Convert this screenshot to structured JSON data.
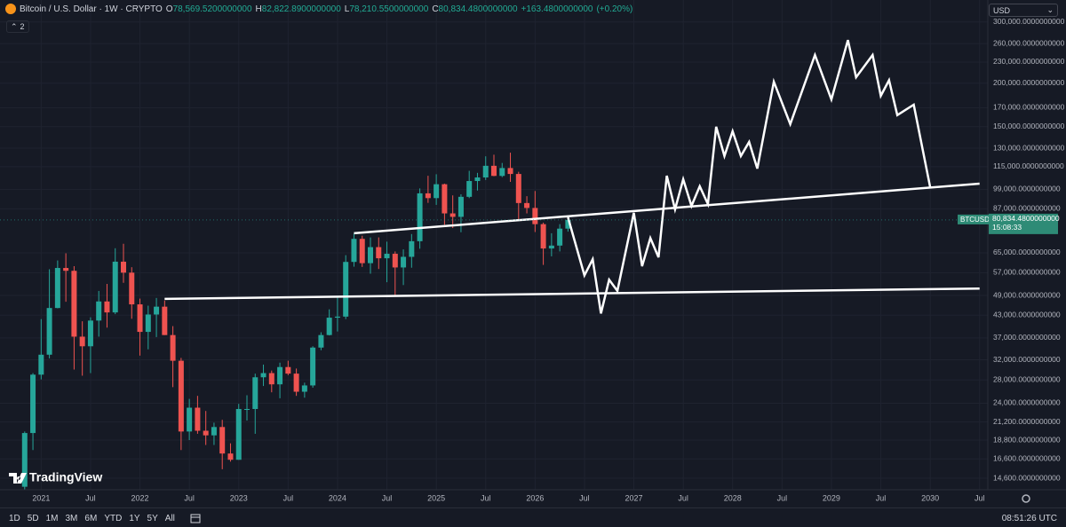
{
  "header": {
    "title": "Bitcoin / U.S. Dollar · 1W · CRYPTO",
    "open_label": "O",
    "open": "78,569.5200000000",
    "high_label": "H",
    "high": "82,822.8900000000",
    "low_label": "L",
    "low": "78,210.5500000000",
    "close_label": "C",
    "close": "80,834.4800000000",
    "change": "+163.4800000000",
    "change_pct": "(+0.20%)",
    "indicator_count": "2",
    "currency": "USD"
  },
  "watermark": "TradingView",
  "toolbar": {
    "ranges": [
      "1D",
      "5D",
      "1M",
      "3M",
      "6M",
      "YTD",
      "1Y",
      "5Y",
      "All"
    ],
    "clock": "08:51:26 UTC"
  },
  "chart_data": {
    "type": "candlestick",
    "log_scale": true,
    "grid": true,
    "up_color": "#26a69a",
    "down_color": "#ef5350",
    "categories": [
      "2020-11",
      "2020-12",
      "2021-01",
      "2021-02",
      "2021-03",
      "2021-04",
      "2021-05",
      "2021-06",
      "2021-07",
      "2021-08",
      "2021-09",
      "2021-10",
      "2021-11",
      "2021-12",
      "2022-01",
      "2022-02",
      "2022-03",
      "2022-04",
      "2022-05",
      "2022-06",
      "2022-07",
      "2022-08",
      "2022-09",
      "2022-10",
      "2022-11",
      "2022-12",
      "2023-01",
      "2023-02",
      "2023-03",
      "2023-04",
      "2023-05",
      "2023-06",
      "2023-07",
      "2023-08",
      "2023-09",
      "2023-10",
      "2023-11",
      "2023-12",
      "2024-01",
      "2024-02",
      "2024-03",
      "2024-04",
      "2024-05",
      "2024-06",
      "2024-07",
      "2024-08",
      "2024-09",
      "2024-10",
      "2024-11",
      "2024-12",
      "2025-01",
      "2025-02",
      "2025-03",
      "2025-04",
      "2025-05",
      "2025-06",
      "2025-07",
      "2025-08",
      "2025-09",
      "2025-10",
      "2025-11",
      "2025-12",
      "2026-01",
      "2026-02",
      "2026-03",
      "2026-04",
      "2026-05"
    ],
    "open": [
      13800,
      19700,
      29000,
      33100,
      45100,
      58800,
      57700,
      37300,
      35000,
      41500,
      47100,
      43800,
      61300,
      57000,
      46200,
      38500,
      43200,
      45500,
      37700,
      31800,
      19900,
      23300,
      20000,
      19400,
      20500,
      17200,
      16500,
      23100,
      23100,
      28500,
      29300,
      27200,
      30500,
      29200,
      25900,
      27000,
      34700,
      37700,
      42300,
      42600,
      61200,
      71300,
      60700,
      67500,
      62700,
      64600,
      59000,
      63300,
      70200,
      96400,
      93400,
      102400,
      84400,
      82500,
      94200,
      104600,
      107100,
      115700,
      108200,
      114000,
      109600,
      90400,
      87500,
      78600,
      66900,
      68200,
      76300
    ],
    "high": [
      19900,
      29300,
      41900,
      58300,
      61800,
      64800,
      59500,
      41300,
      42400,
      50500,
      52900,
      67000,
      69000,
      59100,
      48000,
      45800,
      48200,
      47400,
      40000,
      32400,
      24700,
      25200,
      22800,
      21100,
      21500,
      18400,
      23900,
      25300,
      29200,
      31000,
      29800,
      31400,
      31800,
      30200,
      27500,
      35000,
      38400,
      44700,
      48900,
      64000,
      73800,
      72800,
      72000,
      72000,
      70000,
      65600,
      66500,
      73600,
      99600,
      108300,
      109400,
      102800,
      95100,
      95800,
      111900,
      110400,
      123200,
      124500,
      117900,
      126200,
      111200,
      94600,
      97900,
      79400,
      74000,
      78600,
      82800
    ],
    "low": [
      13200,
      17600,
      28100,
      32300,
      45000,
      47000,
      30000,
      28800,
      29300,
      37300,
      39600,
      43300,
      53300,
      42000,
      32900,
      34300,
      37200,
      37700,
      26700,
      17600,
      18800,
      19600,
      18200,
      18200,
      15500,
      16300,
      16500,
      21400,
      19600,
      26900,
      25800,
      24800,
      28900,
      25200,
      24900,
      26600,
      34100,
      37600,
      38600,
      41900,
      59300,
      59200,
      56600,
      58400,
      53500,
      49000,
      52500,
      58900,
      66800,
      90500,
      89300,
      78300,
      76600,
      74500,
      93400,
      98200,
      105300,
      108000,
      107300,
      104000,
      80600,
      84400,
      74600,
      60000,
      63500,
      65600,
      74800
    ],
    "close": [
      19700,
      29000,
      33100,
      45100,
      58800,
      57700,
      37300,
      35000,
      41500,
      47100,
      43800,
      61300,
      57000,
      46200,
      38500,
      43200,
      45500,
      37700,
      31800,
      19900,
      23300,
      20000,
      19400,
      20500,
      17200,
      16500,
      23100,
      23100,
      28500,
      29300,
      27200,
      30500,
      29200,
      25900,
      27000,
      34700,
      37700,
      42300,
      42600,
      61200,
      71300,
      60700,
      67500,
      62700,
      64600,
      59000,
      63300,
      70200,
      96400,
      93400,
      102400,
      84400,
      82500,
      94200,
      104600,
      107100,
      115700,
      108200,
      114000,
      109600,
      90400,
      87500,
      78600,
      66900,
      68200,
      76300,
      80800
    ],
    "xlim": [
      "2020-08",
      "2030-08"
    ],
    "xticks": [
      {
        "value": "2021-01",
        "label": "2021"
      },
      {
        "value": "2021-07",
        "label": "Jul"
      },
      {
        "value": "2022-01",
        "label": "2022"
      },
      {
        "value": "2022-07",
        "label": "Jul"
      },
      {
        "value": "2023-01",
        "label": "2023"
      },
      {
        "value": "2023-07",
        "label": "Jul"
      },
      {
        "value": "2024-01",
        "label": "2024"
      },
      {
        "value": "2024-07",
        "label": "Jul"
      },
      {
        "value": "2025-01",
        "label": "2025"
      },
      {
        "value": "2025-07",
        "label": "Jul"
      },
      {
        "value": "2026-01",
        "label": "2026"
      },
      {
        "value": "2026-07",
        "label": "Jul"
      },
      {
        "value": "2027-01",
        "label": "2027"
      },
      {
        "value": "2027-07",
        "label": "Jul"
      },
      {
        "value": "2028-01",
        "label": "2028"
      },
      {
        "value": "2028-07",
        "label": "Jul"
      },
      {
        "value": "2029-01",
        "label": "2029"
      },
      {
        "value": "2029-07",
        "label": "Jul"
      },
      {
        "value": "2030-01",
        "label": "2030"
      },
      {
        "value": "2030-07",
        "label": "Jul"
      }
    ],
    "ylim": [
      13530,
      347000
    ],
    "yticks": [
      {
        "value": 300000,
        "label": "300,000.0000000000"
      },
      {
        "value": 260000,
        "label": "260,000.0000000000"
      },
      {
        "value": 230000,
        "label": "230,000.0000000000"
      },
      {
        "value": 200000,
        "label": "200,000.0000000000"
      },
      {
        "value": 170000,
        "label": "170,000.0000000000"
      },
      {
        "value": 150000,
        "label": "150,000.0000000000"
      },
      {
        "value": 130000,
        "label": "130,000.0000000000"
      },
      {
        "value": 115000,
        "label": "115,000.0000000000"
      },
      {
        "value": 99000,
        "label": "99,000.0000000000"
      },
      {
        "value": 87000,
        "label": "87,000.0000000000"
      },
      {
        "value": 65000,
        "label": "65,000.0000000000"
      },
      {
        "value": 57000,
        "label": "57,000.0000000000"
      },
      {
        "value": 49000,
        "label": "49,000.0000000000"
      },
      {
        "value": 43000,
        "label": "43,000.0000000000"
      },
      {
        "value": 37000,
        "label": "37,000.0000000000"
      },
      {
        "value": 32000,
        "label": "32,000.0000000000"
      },
      {
        "value": 28000,
        "label": "28,000.0000000000"
      },
      {
        "value": 24000,
        "label": "24,000.0000000000"
      },
      {
        "value": 21200,
        "label": "21,200.0000000000"
      },
      {
        "value": 18800,
        "label": "18,800.0000000000"
      },
      {
        "value": 16600,
        "label": "16,600.0000000000"
      },
      {
        "value": 14600,
        "label": "14,600.0000000000"
      }
    ],
    "symbol_tag": "BTCUSD",
    "last_price": {
      "value": 80834.48,
      "label": "80,834.4800000000"
    },
    "countdown": "15:08:33",
    "drawings": [
      {
        "color": "#ffffff",
        "x": [
          "2022-04",
          "2030-07"
        ],
        "values": [
          47900,
          51300
        ]
      },
      {
        "color": "#ffffff",
        "x": [
          "2024-03",
          "2030-07"
        ],
        "values": [
          74000,
          102800
        ]
      },
      {
        "color": "#ffffff",
        "x": [
          "2026-05",
          "2026-07",
          "2026-08",
          "2026-09",
          "2026-10",
          "2026-11",
          "2027-01",
          "2027-02",
          "2027-03",
          "2027-04",
          "2027-05",
          "2027-06",
          "2027-07",
          "2027-08",
          "2027-09",
          "2027-10",
          "2027-11",
          "2027-12",
          "2028-01",
          "2028-02",
          "2028-03",
          "2028-04",
          "2028-06",
          "2028-08",
          "2028-11",
          "2029-01",
          "2029-03",
          "2029-04",
          "2029-06",
          "2029-07",
          "2029-08",
          "2029-09",
          "2029-11",
          "2030-01"
        ],
        "values": [
          82200,
          56000,
          62300,
          43500,
          54400,
          50500,
          84700,
          59500,
          71700,
          63100,
          108300,
          86700,
          105800,
          88700,
          101000,
          89800,
          149800,
          123400,
          145400,
          123400,
          135500,
          113600,
          202000,
          152500,
          241000,
          179600,
          266000,
          208000,
          241000,
          183900,
          204000,
          161800,
          173400,
          100400
        ]
      }
    ]
  }
}
